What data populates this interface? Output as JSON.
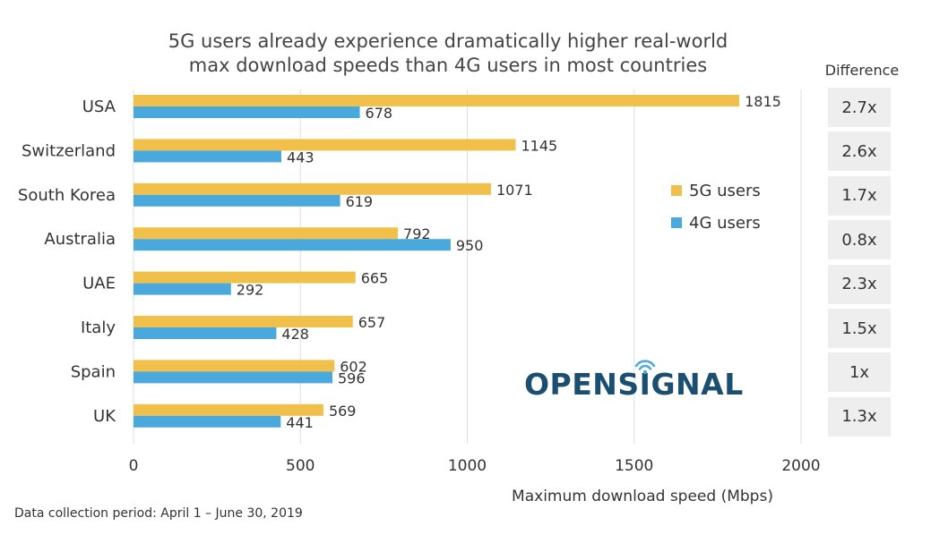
{
  "title": [
    "5G users already experience dramatically higher real-world",
    "max download speeds than 4G users in most countries"
  ],
  "difference_header": "Difference",
  "differences": [
    "2.7x",
    "2.6x",
    "1.7x",
    "0.8x",
    "2.3x",
    "1.5x",
    "1x",
    "1.3x"
  ],
  "footnote": "Data collection period: April 1 – June 30, 2019",
  "logo_text": "OPENSIGNAL",
  "colors": {
    "5g": "#f0c04a",
    "4g": "#4aa9dc",
    "logo": "#1b4f72"
  },
  "chart_data": {
    "type": "bar",
    "orientation": "horizontal",
    "categories": [
      "USA",
      "Switzerland",
      "South Korea",
      "Australia",
      "UAE",
      "Italy",
      "Spain",
      "UK"
    ],
    "series": [
      {
        "name": "5G users",
        "values": [
          1815,
          1145,
          1071,
          792,
          665,
          657,
          602,
          569
        ]
      },
      {
        "name": "4G users",
        "values": [
          678,
          443,
          619,
          950,
          292,
          428,
          596,
          441
        ]
      }
    ],
    "xlabel": "Maximum download speed  (Mbps)",
    "xlim": [
      0,
      2000
    ],
    "xticks": [
      0,
      500,
      1000,
      1500,
      2000
    ],
    "grid": true,
    "legend": "right"
  }
}
